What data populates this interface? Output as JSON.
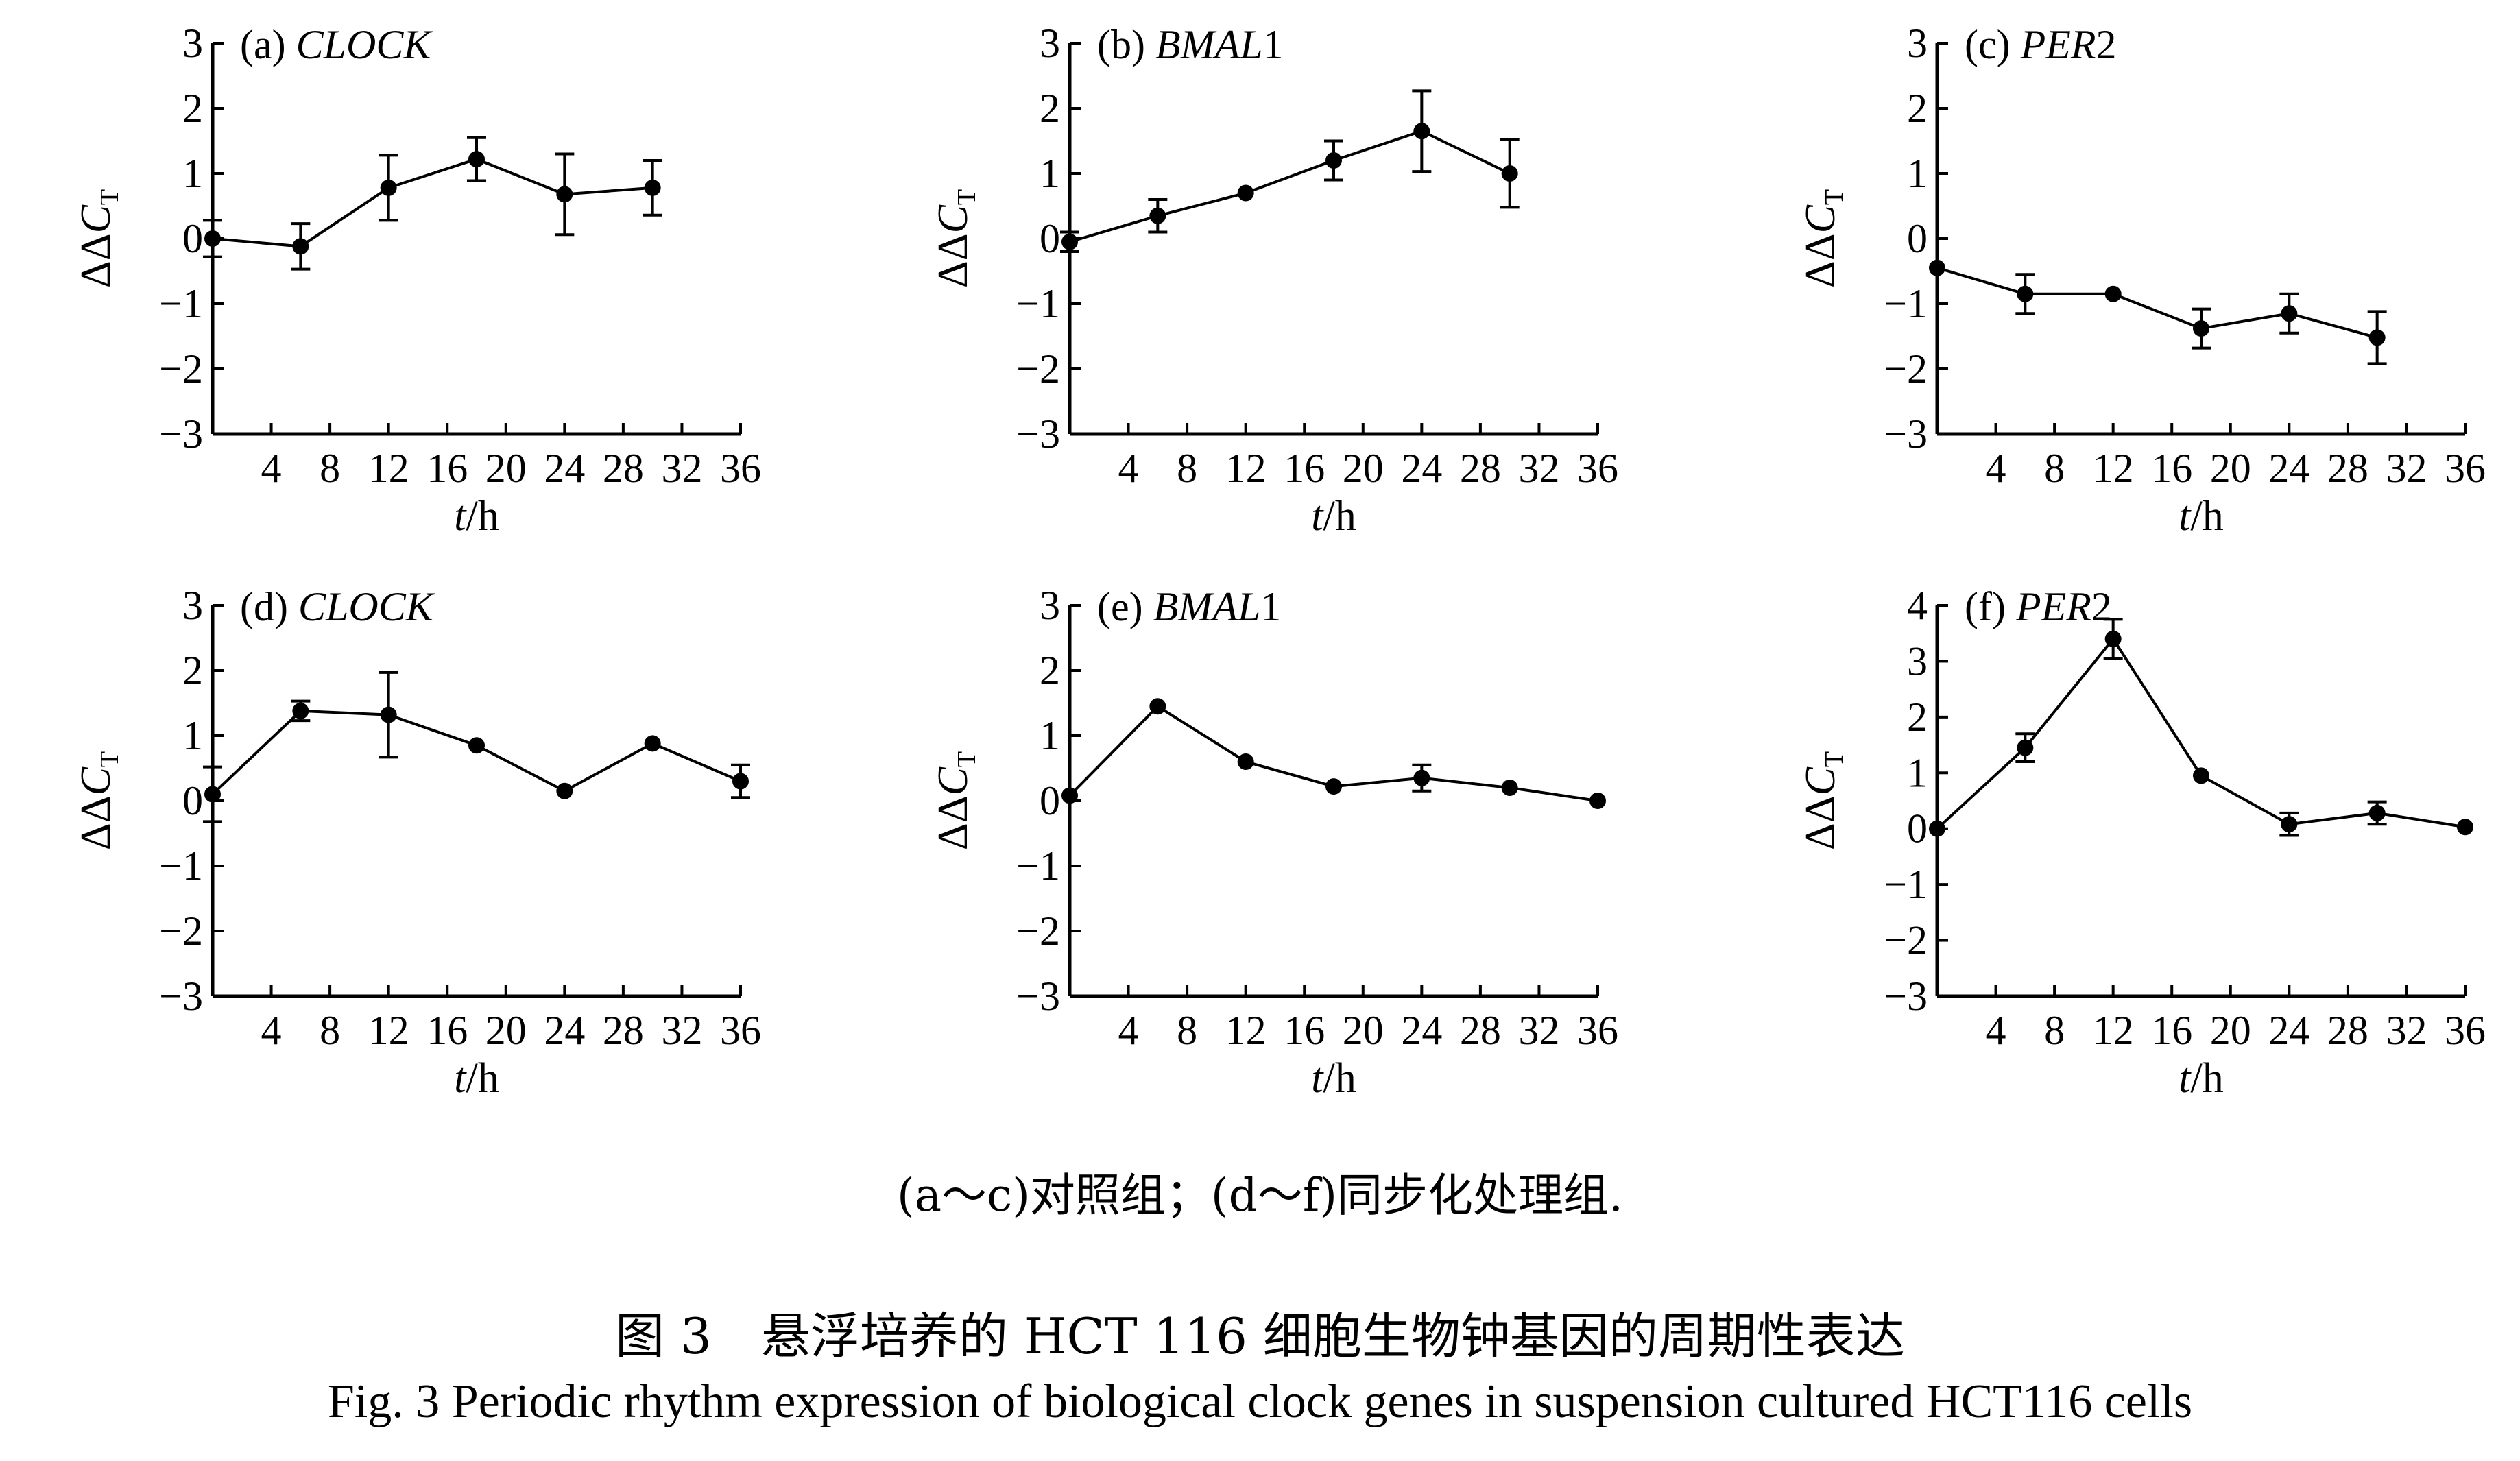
{
  "chart_data": [
    {
      "type": "line",
      "panel_id": "(a)",
      "panel_gene": "CLOCK",
      "panel_gene_suffix": "",
      "ylabel": "ΔΔC",
      "ylabel_subscript": "T",
      "xlabel_italic": "t",
      "xlabel_unit": "/h",
      "xlim": [
        0,
        36
      ],
      "ylim": [
        -3,
        3
      ],
      "xticks": [
        4,
        8,
        12,
        16,
        20,
        24,
        28,
        32,
        36
      ],
      "yticks": [
        -3,
        -2,
        -1,
        0,
        1,
        2,
        3
      ],
      "ytick_labels": [
        "−3",
        "−2",
        "−1",
        "0",
        "1",
        "2",
        "3"
      ],
      "x": [
        0,
        6,
        12,
        18,
        24,
        30
      ],
      "y": [
        0.0,
        -0.12,
        0.78,
        1.22,
        0.68,
        0.78
      ],
      "err": [
        0.28,
        0.35,
        0.5,
        0.33,
        0.62,
        0.42
      ]
    },
    {
      "type": "line",
      "panel_id": "(b)",
      "panel_gene": "BMAL",
      "panel_gene_suffix": "1",
      "ylabel": "ΔΔC",
      "ylabel_subscript": "T",
      "xlabel_italic": "t",
      "xlabel_unit": "/h",
      "xlim": [
        0,
        36
      ],
      "ylim": [
        -3,
        3
      ],
      "xticks": [
        4,
        8,
        12,
        16,
        20,
        24,
        28,
        32,
        36
      ],
      "yticks": [
        -3,
        -2,
        -1,
        0,
        1,
        2,
        3
      ],
      "ytick_labels": [
        "−3",
        "−2",
        "−1",
        "0",
        "1",
        "2",
        "3"
      ],
      "x": [
        0,
        6,
        12,
        18,
        24,
        30
      ],
      "y": [
        -0.05,
        0.35,
        0.7,
        1.2,
        1.65,
        1.0
      ],
      "err": [
        0.15,
        0.25,
        0.0,
        0.3,
        0.62,
        0.52
      ]
    },
    {
      "type": "line",
      "panel_id": "(c)",
      "panel_gene": "PER",
      "panel_gene_suffix": "2",
      "ylabel": "ΔΔC",
      "ylabel_subscript": "T",
      "xlabel_italic": "t",
      "xlabel_unit": "/h",
      "xlim": [
        0,
        36
      ],
      "ylim": [
        -3,
        3
      ],
      "xticks": [
        4,
        8,
        12,
        16,
        20,
        24,
        28,
        32,
        36
      ],
      "yticks": [
        -3,
        -2,
        -1,
        0,
        1,
        2,
        3
      ],
      "ytick_labels": [
        "−3",
        "−2",
        "−1",
        "0",
        "1",
        "2",
        "3"
      ],
      "x": [
        0,
        6,
        12,
        18,
        24,
        30
      ],
      "y": [
        -0.45,
        -0.85,
        -0.85,
        -1.38,
        -1.15,
        -1.52
      ],
      "err": [
        0.0,
        0.3,
        0.0,
        0.3,
        0.3,
        0.4
      ]
    },
    {
      "type": "line",
      "panel_id": "(d)",
      "panel_gene": "CLOCK",
      "panel_gene_suffix": "",
      "ylabel": "ΔΔC",
      "ylabel_subscript": "T",
      "xlabel_italic": "t",
      "xlabel_unit": "/h",
      "xlim": [
        0,
        36
      ],
      "ylim": [
        -3,
        3
      ],
      "xticks": [
        4,
        8,
        12,
        16,
        20,
        24,
        28,
        32,
        36
      ],
      "yticks": [
        -3,
        -2,
        -1,
        0,
        1,
        2,
        3
      ],
      "ytick_labels": [
        "−3",
        "−2",
        "−1",
        "0",
        "1",
        "2",
        "3"
      ],
      "x": [
        0,
        6,
        12,
        18,
        24,
        30,
        36
      ],
      "y": [
        0.1,
        1.38,
        1.32,
        0.85,
        0.15,
        0.88,
        0.3
      ],
      "err": [
        0.42,
        0.15,
        0.65,
        0.0,
        0.0,
        0.0,
        0.25
      ]
    },
    {
      "type": "line",
      "panel_id": "(e)",
      "panel_gene": "BMAL",
      "panel_gene_suffix": "1",
      "ylabel": "ΔΔC",
      "ylabel_subscript": "T",
      "xlabel_italic": "t",
      "xlabel_unit": "/h",
      "xlim": [
        0,
        36
      ],
      "ylim": [
        -3,
        3
      ],
      "xticks": [
        4,
        8,
        12,
        16,
        20,
        24,
        28,
        32,
        36
      ],
      "yticks": [
        -3,
        -2,
        -1,
        0,
        1,
        2,
        3
      ],
      "ytick_labels": [
        "−3",
        "−2",
        "−1",
        "0",
        "1",
        "2",
        "3"
      ],
      "x": [
        0,
        6,
        12,
        18,
        24,
        30,
        36
      ],
      "y": [
        0.08,
        1.45,
        0.6,
        0.22,
        0.35,
        0.2,
        0.0
      ],
      "err": [
        0.0,
        0.0,
        0.0,
        0.0,
        0.2,
        0.0,
        0.0
      ]
    },
    {
      "type": "line",
      "panel_id": "(f)",
      "panel_gene": "PER",
      "panel_gene_suffix": "2",
      "ylabel": "ΔΔC",
      "ylabel_subscript": "T",
      "xlabel_italic": "t",
      "xlabel_unit": "/h",
      "xlim": [
        0,
        36
      ],
      "ylim": [
        -3,
        4
      ],
      "xticks": [
        4,
        8,
        12,
        16,
        20,
        24,
        28,
        32,
        36
      ],
      "yticks": [
        -3,
        -2,
        -1,
        0,
        1,
        2,
        3,
        4
      ],
      "ytick_labels": [
        "−3",
        "−2",
        "−1",
        "0",
        "1",
        "2",
        "3",
        "4"
      ],
      "x": [
        0,
        6,
        12,
        18,
        24,
        30,
        36
      ],
      "y": [
        0.0,
        1.45,
        3.4,
        0.95,
        0.08,
        0.28,
        0.03
      ],
      "err": [
        0.0,
        0.25,
        0.35,
        0.0,
        0.2,
        0.2,
        0.0
      ]
    }
  ],
  "captions": {
    "sub": "(a～c)对照组；(d～f)同步化处理组.",
    "fig_cn": "图 3　悬浮培养的 HCT 116 细胞生物钟基因的周期性表达",
    "fig_en": "Fig. 3   Periodic rhythm expression of biological clock genes in suspension cultured HCT116 cells"
  }
}
